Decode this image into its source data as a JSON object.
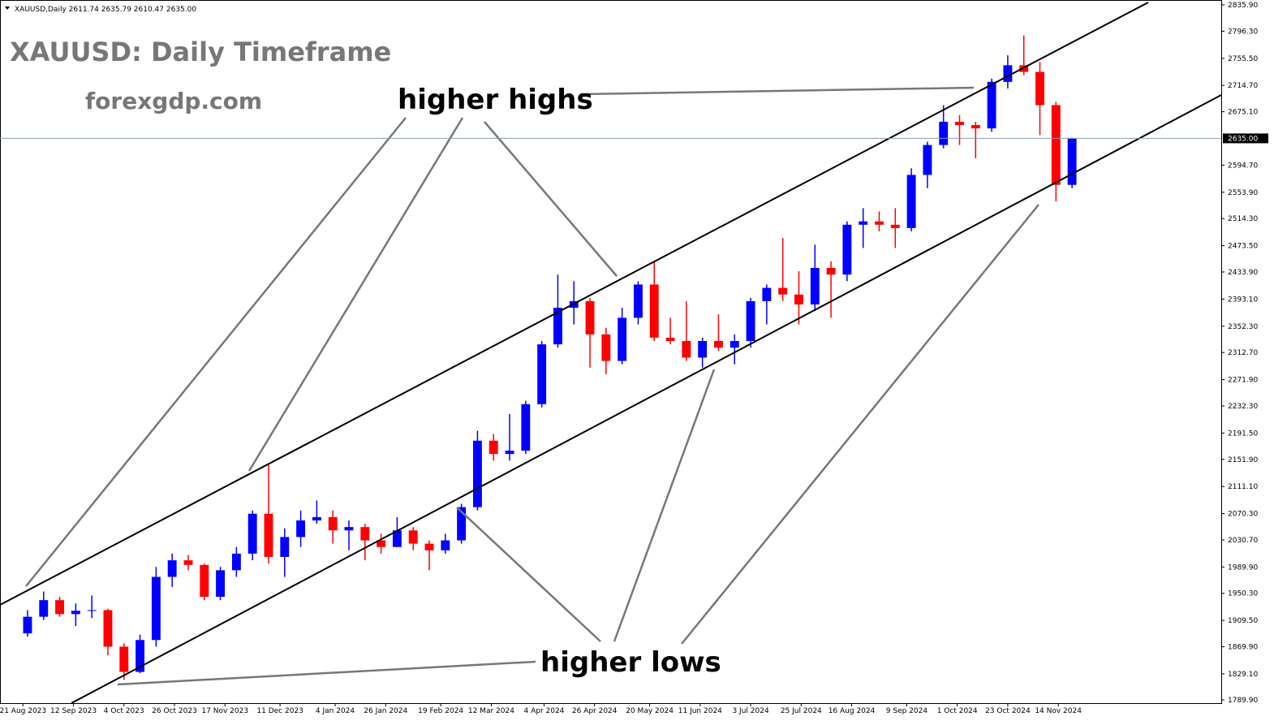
{
  "chart_data": {
    "type": "candlestick",
    "title": "XAUUSD: Daily Timeframe",
    "subtitle": "forexgdp.com",
    "header": "XAUUSD,Daily  2611.74 2635.79 2610.47 2635.00",
    "annotations": [
      "higher highs",
      "higher lows"
    ],
    "up_color": "#0000ff",
    "down_color": "#ff0000",
    "last_price": {
      "value": 2635,
      "label": "2635.00"
    },
    "xlim": [
      "11 Aug 2023",
      "24 Jan 2025"
    ],
    "ylim": [
      1789.9,
      2835.9
    ],
    "yticks": [
      {
        "value": 2835.9,
        "label": "2835.90"
      },
      {
        "value": 2796.3,
        "label": "2796.30"
      },
      {
        "value": 2755.5,
        "label": "2755.50"
      },
      {
        "value": 2714.7,
        "label": "2714.70"
      },
      {
        "value": 2675.1,
        "label": "2675.10"
      },
      {
        "value": 2594.7,
        "label": "2594.70"
      },
      {
        "value": 2553.9,
        "label": "2553.90"
      },
      {
        "value": 2514.3,
        "label": "2514.30"
      },
      {
        "value": 2473.5,
        "label": "2473.50"
      },
      {
        "value": 2433.9,
        "label": "2433.90"
      },
      {
        "value": 2393.1,
        "label": "2393.10"
      },
      {
        "value": 2352.3,
        "label": "2352.30"
      },
      {
        "value": 2312.7,
        "label": "2312.70"
      },
      {
        "value": 2271.9,
        "label": "2271.90"
      },
      {
        "value": 2232.3,
        "label": "2232.30"
      },
      {
        "value": 2191.5,
        "label": "2191.50"
      },
      {
        "value": 2151.9,
        "label": "2151.90"
      },
      {
        "value": 2111.1,
        "label": "2111.10"
      },
      {
        "value": 2070.3,
        "label": "2070.30"
      },
      {
        "value": 2030.7,
        "label": "2030.70"
      },
      {
        "value": 1989.9,
        "label": "1989.90"
      },
      {
        "value": 1950.3,
        "label": "1950.30"
      },
      {
        "value": 1909.5,
        "label": "1909.50"
      },
      {
        "value": 1869.9,
        "label": "1869.90"
      },
      {
        "value": 1829.1,
        "label": "1829.10"
      },
      {
        "value": 1789.9,
        "label": "1789.90"
      }
    ],
    "xticks": [
      "21 Aug 2023",
      "12 Sep 2023",
      "4 Oct 2023",
      "26 Oct 2023",
      "17 Nov 2023",
      "11 Dec 2023",
      "4 Jan 2024",
      "26 Jan 2024",
      "19 Feb 2024",
      "12 Mar 2024",
      "4 Apr 2024",
      "26 Apr 2024",
      "20 May 2024",
      "11 Jun 2024",
      "3 Jul 2024",
      "25 Jul 2024",
      "16 Aug 2024",
      "9 Sep 2024",
      "1 Oct 2024",
      "23 Oct 2024",
      "14 Nov 2024"
    ],
    "x": [
      "21 Aug 2023",
      "28 Aug 2023",
      "4 Sep 2023",
      "11 Sep 2023",
      "18 Sep 2023",
      "25 Sep 2023",
      "2 Oct 2023",
      "9 Oct 2023",
      "16 Oct 2023",
      "23 Oct 2023",
      "30 Oct 2023",
      "6 Nov 2023",
      "13 Nov 2023",
      "20 Nov 2023",
      "27 Nov 2023",
      "4 Dec 2023",
      "11 Dec 2023",
      "18 Dec 2023",
      "25 Dec 2023",
      "1 Jan 2024",
      "8 Jan 2024",
      "15 Jan 2024",
      "22 Jan 2024",
      "29 Jan 2024",
      "5 Feb 2024",
      "12 Feb 2024",
      "19 Feb 2024",
      "26 Feb 2024",
      "4 Mar 2024",
      "11 Mar 2024",
      "18 Mar 2024",
      "25 Mar 2024",
      "1 Apr 2024",
      "8 Apr 2024",
      "15 Apr 2024",
      "22 Apr 2024",
      "29 Apr 2024",
      "6 May 2024",
      "13 May 2024",
      "20 May 2024",
      "27 May 2024",
      "3 Jun 2024",
      "10 Jun 2024",
      "17 Jun 2024",
      "24 Jun 2024",
      "1 Jul 2024",
      "8 Jul 2024",
      "15 Jul 2024",
      "22 Jul 2024",
      "29 Jul 2024",
      "5 Aug 2024",
      "12 Aug 2024",
      "19 Aug 2024",
      "26 Aug 2024",
      "2 Sep 2024",
      "9 Sep 2024",
      "16 Sep 2024",
      "23 Sep 2024",
      "30 Sep 2024",
      "7 Oct 2024",
      "14 Oct 2024",
      "21 Oct 2024",
      "28 Oct 2024",
      "4 Nov 2024",
      "11 Nov 2024",
      "18 Nov 2024"
    ],
    "open": [
      1890,
      1915,
      1940,
      1919,
      1924,
      1925,
      1870,
      1832,
      1880,
      1975,
      2000,
      1993,
      1945,
      1985,
      2010,
      2070,
      2005,
      2035,
      2060,
      2065,
      2045,
      2050,
      2030,
      2020,
      2045,
      2025,
      2015,
      2030,
      2080,
      2180,
      2160,
      2165,
      2235,
      2325,
      2380,
      2390,
      2340,
      2300,
      2365,
      2415,
      2335,
      2330,
      2305,
      2330,
      2320,
      2330,
      2390,
      2410,
      2400,
      2385,
      2440,
      2430,
      2505,
      2510,
      2505,
      2500,
      2580,
      2625,
      2660,
      2655,
      2650,
      2720,
      2745,
      2735,
      2685,
      2565
    ],
    "high": [
      1925,
      1953,
      1945,
      1935,
      1947,
      1927,
      1875,
      1888,
      1990,
      2010,
      2008,
      1995,
      1990,
      2020,
      2075,
      2145,
      2048,
      2075,
      2090,
      2075,
      2060,
      2055,
      2040,
      2065,
      2050,
      2030,
      2040,
      2085,
      2195,
      2190,
      2220,
      2240,
      2330,
      2430,
      2420,
      2395,
      2350,
      2380,
      2420,
      2450,
      2365,
      2390,
      2335,
      2370,
      2340,
      2395,
      2415,
      2485,
      2435,
      2475,
      2450,
      2510,
      2530,
      2525,
      2530,
      2590,
      2630,
      2685,
      2670,
      2660,
      2725,
      2760,
      2790,
      2750,
      2690,
      2636
    ],
    "low": [
      1885,
      1910,
      1915,
      1901,
      1913,
      1857,
      1820,
      1830,
      1870,
      1960,
      1985,
      1940,
      1940,
      1975,
      2000,
      1995,
      1975,
      2020,
      2055,
      2025,
      2015,
      2000,
      2010,
      2020,
      2015,
      1985,
      2010,
      2025,
      2075,
      2150,
      2150,
      2160,
      2230,
      2320,
      2355,
      2290,
      2280,
      2295,
      2355,
      2330,
      2325,
      2300,
      2290,
      2315,
      2295,
      2320,
      2355,
      2390,
      2355,
      2375,
      2365,
      2420,
      2470,
      2495,
      2470,
      2495,
      2560,
      2620,
      2625,
      2605,
      2645,
      2710,
      2730,
      2640,
      2540,
      2560
    ],
    "close": [
      1915,
      1940,
      1919,
      1924,
      1925,
      1870,
      1832,
      1880,
      1975,
      2000,
      1993,
      1945,
      1985,
      2010,
      2070,
      2005,
      2035,
      2060,
      2065,
      2045,
      2050,
      2030,
      2020,
      2045,
      2025,
      2015,
      2030,
      2080,
      2180,
      2160,
      2165,
      2235,
      2325,
      2380,
      2390,
      2340,
      2300,
      2365,
      2415,
      2335,
      2330,
      2305,
      2330,
      2320,
      2330,
      2390,
      2410,
      2400,
      2385,
      2440,
      2430,
      2505,
      2510,
      2505,
      2500,
      2580,
      2625,
      2660,
      2655,
      2650,
      2720,
      2745,
      2735,
      2685,
      2565,
      2635
    ]
  }
}
